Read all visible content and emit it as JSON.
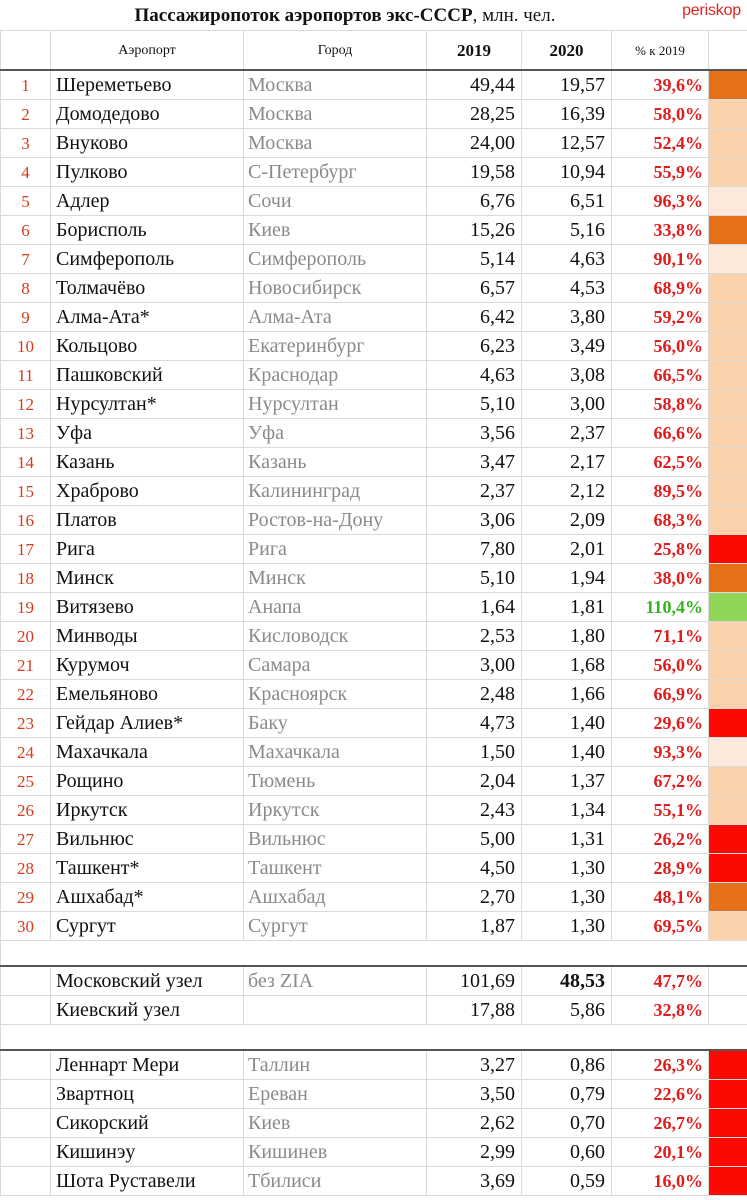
{
  "title": {
    "bold": "Пассажиропоток аэропортов экс-СССР",
    "rest": ", млн. чел."
  },
  "brand": "periskop",
  "headers": {
    "airport": "Аэропорт",
    "city": "Город",
    "y2019": "2019",
    "y2020": "2020",
    "pct": "% к 2019"
  },
  "colors": {
    "light": "#fcd2ad",
    "pale": "#fde9db",
    "orange": "#e5701a",
    "red": "#fa0a00",
    "green": "#8fd657"
  },
  "rows": [
    {
      "n": "1",
      "airport": "Шереметьево",
      "city": "Москва",
      "v2019": "49,44",
      "v2020": "19,57",
      "pct": "39,6%",
      "swatch": "orange"
    },
    {
      "n": "2",
      "airport": "Домодедово",
      "city": "Москва",
      "v2019": "28,25",
      "v2020": "16,39",
      "pct": "58,0%",
      "swatch": "light"
    },
    {
      "n": "3",
      "airport": "Внуково",
      "city": "Москва",
      "v2019": "24,00",
      "v2020": "12,57",
      "pct": "52,4%",
      "swatch": "light"
    },
    {
      "n": "4",
      "airport": "Пулково",
      "city": "С-Петербург",
      "v2019": "19,58",
      "v2020": "10,94",
      "pct": "55,9%",
      "swatch": "light"
    },
    {
      "n": "5",
      "airport": "Адлер",
      "city": "Сочи",
      "v2019": "6,76",
      "v2020": "6,51",
      "pct": "96,3%",
      "swatch": "pale"
    },
    {
      "n": "6",
      "airport": "Борисполь",
      "city": "Киев",
      "v2019": "15,26",
      "v2020": "5,16",
      "pct": "33,8%",
      "swatch": "orange"
    },
    {
      "n": "7",
      "airport": "Симферополь",
      "city": "Симферополь",
      "v2019": "5,14",
      "v2020": "4,63",
      "pct": "90,1%",
      "swatch": "pale"
    },
    {
      "n": "8",
      "airport": "Толмачёво",
      "city": "Новосибирск",
      "v2019": "6,57",
      "v2020": "4,53",
      "pct": "68,9%",
      "swatch": "light"
    },
    {
      "n": "9",
      "airport": "Алма-Ата*",
      "city": "Алма-Ата",
      "v2019": "6,42",
      "v2020": "3,80",
      "pct": "59,2%",
      "swatch": "light"
    },
    {
      "n": "10",
      "airport": "Кольцово",
      "city": "Екатеринбург",
      "v2019": "6,23",
      "v2020": "3,49",
      "pct": "56,0%",
      "swatch": "light"
    },
    {
      "n": "11",
      "airport": "Пашковский",
      "city": "Краснодар",
      "v2019": "4,63",
      "v2020": "3,08",
      "pct": "66,5%",
      "swatch": "light"
    },
    {
      "n": "12",
      "airport": "Нурсултан*",
      "city": "Нурсултан",
      "v2019": "5,10",
      "v2020": "3,00",
      "pct": "58,8%",
      "swatch": "light"
    },
    {
      "n": "13",
      "airport": "Уфа",
      "city": "Уфа",
      "v2019": "3,56",
      "v2020": "2,37",
      "pct": "66,6%",
      "swatch": "light"
    },
    {
      "n": "14",
      "airport": "Казань",
      "city": "Казань",
      "v2019": "3,47",
      "v2020": "2,17",
      "pct": "62,5%",
      "swatch": "light"
    },
    {
      "n": "15",
      "airport": "Храброво",
      "city": "Калининград",
      "v2019": "2,37",
      "v2020": "2,12",
      "pct": "89,5%",
      "swatch": "light"
    },
    {
      "n": "16",
      "airport": "Платов",
      "city": "Ростов-на-Дону",
      "v2019": "3,06",
      "v2020": "2,09",
      "pct": "68,3%",
      "swatch": "light"
    },
    {
      "n": "17",
      "airport": "Рига",
      "city": "Рига",
      "v2019": "7,80",
      "v2020": "2,01",
      "pct": "25,8%",
      "swatch": "red"
    },
    {
      "n": "18",
      "airport": "Минск",
      "city": "Минск",
      "v2019": "5,10",
      "v2020": "1,94",
      "pct": "38,0%",
      "swatch": "orange"
    },
    {
      "n": "19",
      "airport": "Витязево",
      "city": "Анапа",
      "v2019": "1,64",
      "v2020": "1,81",
      "pct": "110,4%",
      "swatch": "green",
      "positive": true
    },
    {
      "n": "20",
      "airport": "Минводы",
      "city": "Кисловодск",
      "v2019": "2,53",
      "v2020": "1,80",
      "pct": "71,1%",
      "swatch": "light"
    },
    {
      "n": "21",
      "airport": "Курумоч",
      "city": "Самара",
      "v2019": "3,00",
      "v2020": "1,68",
      "pct": "56,0%",
      "swatch": "light"
    },
    {
      "n": "22",
      "airport": "Емельяново",
      "city": "Красноярск",
      "v2019": "2,48",
      "v2020": "1,66",
      "pct": "66,9%",
      "swatch": "light"
    },
    {
      "n": "23",
      "airport": "Гейдар Алиев*",
      "city": "Баку",
      "v2019": "4,73",
      "v2020": "1,40",
      "pct": "29,6%",
      "swatch": "red"
    },
    {
      "n": "24",
      "airport": "Махачкала",
      "city": "Махачкала",
      "v2019": "1,50",
      "v2020": "1,40",
      "pct": "93,3%",
      "swatch": "pale"
    },
    {
      "n": "25",
      "airport": "Рощино",
      "city": "Тюмень",
      "v2019": "2,04",
      "v2020": "1,37",
      "pct": "67,2%",
      "swatch": "light"
    },
    {
      "n": "26",
      "airport": "Иркутск",
      "city": "Иркутск",
      "v2019": "2,43",
      "v2020": "1,34",
      "pct": "55,1%",
      "swatch": "light"
    },
    {
      "n": "27",
      "airport": "Вильнюс",
      "city": "Вильнюс",
      "v2019": "5,00",
      "v2020": "1,31",
      "pct": "26,2%",
      "swatch": "red"
    },
    {
      "n": "28",
      "airport": "Ташкент*",
      "city": "Ташкент",
      "v2019": "4,50",
      "v2020": "1,30",
      "pct": "28,9%",
      "swatch": "red"
    },
    {
      "n": "29",
      "airport": "Ашхабад*",
      "city": "Ашхабад",
      "v2019": "2,70",
      "v2020": "1,30",
      "pct": "48,1%",
      "swatch": "orange"
    },
    {
      "n": "30",
      "airport": "Сургут",
      "city": "Сургут",
      "v2019": "1,87",
      "v2020": "1,30",
      "pct": "69,5%",
      "swatch": "light"
    }
  ],
  "hubs": [
    {
      "airport": "Московский узел",
      "city": "без ZIA",
      "v2019": "101,69",
      "v2020": "48,53",
      "pct": "47,7%",
      "bold2020": true
    },
    {
      "airport": "Киевский узел",
      "city": "",
      "v2019": "17,88",
      "v2020": "5,86",
      "pct": "32,8%",
      "bold2020": false
    }
  ],
  "capitals": [
    {
      "airport": "Леннарт Мери",
      "city": "Таллин",
      "v2019": "3,27",
      "v2020": "0,86",
      "pct": "26,3%",
      "swatch": "red"
    },
    {
      "airport": "Звартноц",
      "city": "Ереван",
      "v2019": "3,50",
      "v2020": "0,79",
      "pct": "22,6%",
      "swatch": "red"
    },
    {
      "airport": "Сикорский",
      "city": "Киев",
      "v2019": "2,62",
      "v2020": "0,70",
      "pct": "26,7%",
      "swatch": "red"
    },
    {
      "airport": "Кишинэу",
      "city": "Кишинев",
      "v2019": "2,99",
      "v2020": "0,60",
      "pct": "20,1%",
      "swatch": "red"
    },
    {
      "airport": "Шота Руставели",
      "city": "Тбилиси",
      "v2019": "3,69",
      "v2020": "0,59",
      "pct": "16,0%",
      "swatch": "red"
    }
  ]
}
